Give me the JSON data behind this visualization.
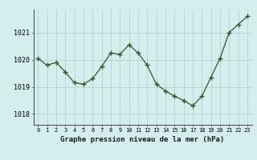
{
  "x": [
    0,
    1,
    2,
    3,
    4,
    5,
    6,
    7,
    8,
    9,
    10,
    11,
    12,
    13,
    14,
    15,
    16,
    17,
    18,
    19,
    20,
    21,
    22,
    23
  ],
  "y": [
    1020.05,
    1019.8,
    1019.9,
    1019.55,
    1019.15,
    1019.1,
    1019.3,
    1019.75,
    1020.25,
    1020.2,
    1020.55,
    1020.25,
    1019.8,
    1019.1,
    1018.85,
    1018.65,
    1018.5,
    1018.3,
    1018.65,
    1019.35,
    1020.05,
    1021.0,
    1021.3,
    1021.6
  ],
  "line_color": "#2d5a2d",
  "marker": "+",
  "marker_size": 4,
  "bg_color": "#d4eeee",
  "grid_color": "#b8d0d0",
  "xlabel": "Graphe pression niveau de la mer (hPa)",
  "yticks": [
    1018,
    1019,
    1020,
    1021
  ],
  "xticks": [
    0,
    1,
    2,
    3,
    4,
    5,
    6,
    7,
    8,
    9,
    10,
    11,
    12,
    13,
    14,
    15,
    16,
    17,
    18,
    19,
    20,
    21,
    22,
    23
  ],
  "ylim": [
    1017.6,
    1021.85
  ],
  "xlim": [
    -0.5,
    23.5
  ]
}
